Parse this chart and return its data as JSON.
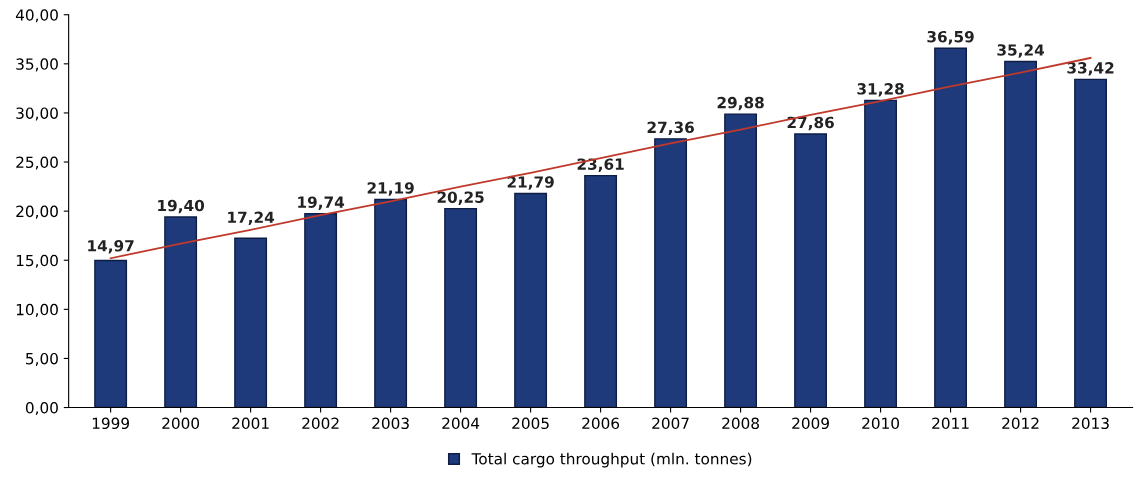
{
  "chart_data": {
    "type": "bar",
    "categories": [
      "1999",
      "2000",
      "2001",
      "2002",
      "2003",
      "2004",
      "2005",
      "2006",
      "2007",
      "2008",
      "2009",
      "2010",
      "2011",
      "2012",
      "2013"
    ],
    "series": [
      {
        "name": "Total cargo throughput (mln. tonnes)",
        "color": "#1f3a7a",
        "values": [
          14.97,
          19.4,
          17.24,
          19.74,
          21.19,
          20.25,
          21.79,
          23.61,
          27.36,
          29.88,
          27.86,
          31.28,
          36.59,
          35.24,
          33.42
        ],
        "value_labels": [
          "14,97",
          "19,40",
          "17,24",
          "19,74",
          "21,19",
          "20,25",
          "21,79",
          "23,61",
          "27,36",
          "29,88",
          "27,86",
          "31,28",
          "36,59",
          "35,24",
          "33,42"
        ]
      },
      {
        "type": "line",
        "color": "#c0392b",
        "values": [
          15.2,
          16.7,
          18.1,
          19.6,
          21.0,
          22.5,
          23.9,
          25.4,
          26.9,
          28.3,
          29.8,
          31.2,
          32.7,
          34.1,
          35.6
        ]
      }
    ],
    "ylim": [
      0,
      40
    ],
    "yticks": [
      {
        "value": 0,
        "label": "0,00"
      },
      {
        "value": 5,
        "label": "5,00"
      },
      {
        "value": 10,
        "label": "10,00"
      },
      {
        "value": 15,
        "label": "15,00"
      },
      {
        "value": 20,
        "label": "20,00"
      },
      {
        "value": 25,
        "label": "25,00"
      },
      {
        "value": 30,
        "label": "30,00"
      },
      {
        "value": 35,
        "label": "35,00"
      },
      {
        "value": 40,
        "label": "40,00"
      }
    ],
    "grid": false,
    "legend": "bottom"
  }
}
